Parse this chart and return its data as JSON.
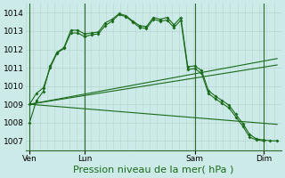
{
  "title": "Pression niveau de la mer( hPa )",
  "bg_color": "#cceae7",
  "grid_color": "#b8d4d0",
  "line_color": "#1a6b1a",
  "ylim": [
    1006.5,
    1014.5
  ],
  "yticks": [
    1007,
    1008,
    1009,
    1010,
    1011,
    1012,
    1013,
    1014
  ],
  "xlim": [
    -0.3,
    18.3
  ],
  "day_positions": [
    0,
    4,
    12,
    17
  ],
  "day_labels": [
    "Ven",
    "Lun",
    "Sam",
    "Dim"
  ],
  "vline_positions": [
    0,
    4,
    12,
    17
  ],
  "line_main": {
    "x": [
      0,
      0.5,
      1,
      1.5,
      2,
      2.5,
      3,
      3.5,
      4,
      4.5,
      5,
      5.5,
      6,
      6.5,
      7,
      7.5,
      8,
      8.5,
      9,
      9.5,
      10,
      10.5,
      11,
      11.5,
      12,
      12.5,
      13,
      13.5,
      14,
      14.5,
      15,
      15.5,
      16,
      16.5,
      17,
      17.5,
      18
    ],
    "y": [
      1008.0,
      1009.2,
      1009.7,
      1011.1,
      1011.85,
      1012.1,
      1013.05,
      1013.05,
      1012.85,
      1012.9,
      1012.95,
      1013.45,
      1013.65,
      1013.95,
      1013.85,
      1013.55,
      1013.3,
      1013.25,
      1013.75,
      1013.65,
      1013.75,
      1013.35,
      1013.75,
      1011.05,
      1011.1,
      1010.85,
      1009.75,
      1009.45,
      1009.2,
      1008.95,
      1008.45,
      1007.95,
      1007.35,
      1007.1,
      1007.05,
      1007.0,
      1007.0
    ]
  },
  "line_high": {
    "x": [
      0,
      0.5,
      1,
      1.5,
      2,
      2.5,
      3,
      3.5,
      4,
      4.5,
      5,
      5.5,
      6,
      6.5,
      7,
      7.5,
      8,
      8.5,
      9,
      9.5,
      10,
      10.5,
      11,
      11.5,
      12,
      12.5,
      13,
      13.5,
      14,
      14.5,
      15,
      15.5,
      16,
      16.5,
      17
    ],
    "y": [
      1009.0,
      1009.6,
      1009.9,
      1011.0,
      1011.8,
      1012.05,
      1012.9,
      1012.9,
      1012.7,
      1012.8,
      1012.85,
      1013.3,
      1013.55,
      1013.9,
      1013.8,
      1013.5,
      1013.2,
      1013.15,
      1013.65,
      1013.55,
      1013.6,
      1013.2,
      1013.6,
      1010.9,
      1010.95,
      1010.7,
      1009.6,
      1009.3,
      1009.05,
      1008.8,
      1008.3,
      1007.8,
      1007.2,
      1007.05,
      1007.0
    ]
  },
  "line_flat1": {
    "x": [
      0,
      18
    ],
    "y": [
      1009.0,
      1011.5
    ]
  },
  "line_flat2": {
    "x": [
      0,
      18
    ],
    "y": [
      1009.0,
      1011.15
    ]
  },
  "line_flat3": {
    "x": [
      0,
      18
    ],
    "y": [
      1009.0,
      1007.9
    ]
  },
  "tick_fontsize": 6.5,
  "title_fontsize": 8.0,
  "marker_size": 2.0,
  "line_width": 0.8
}
